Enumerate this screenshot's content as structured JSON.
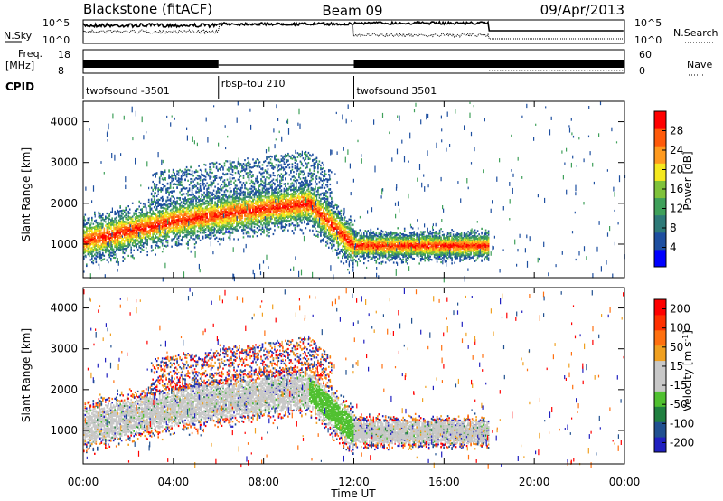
{
  "header": {
    "station": "Blackstone (fitACF)",
    "beam": "Beam 09",
    "date": "09/Apr/2013"
  },
  "panels": {
    "nsky_label": "N.Sky",
    "nsearch_label": "N.Search",
    "freq_label_1": "Freq.",
    "freq_label_2": "[MHz]",
    "nave_label": "Nave",
    "cpid_label": "CPID",
    "nsky_ticks": [
      "10^5",
      "10^0"
    ],
    "nsearch_ticks": [
      "10^5",
      "10^0"
    ],
    "freq_ticks": [
      "18",
      "8"
    ],
    "nave_ticks": [
      "60",
      "0"
    ]
  },
  "cpid_segments": [
    {
      "label": "twofsound -3501",
      "start_hour": 0,
      "end_hour": 6
    },
    {
      "label": "rbsp-tou 210",
      "start_hour": 6,
      "end_hour": 12
    },
    {
      "label": "twofsound 3501",
      "start_hour": 12,
      "end_hour": 24
    }
  ],
  "colors": {
    "power_scale": [
      "#0000ff",
      "#1e4fa0",
      "#2e7a78",
      "#3fa05a",
      "#7fc23a",
      "#f5e81e",
      "#ff9a1e",
      "#ff5a0a",
      "#ff0000"
    ],
    "velocity_scale": [
      "#2020c0",
      "#205090",
      "#208040",
      "#50c030",
      "#c8c8c8",
      "#c8c8c8",
      "#f0a020",
      "#ff7010",
      "#ff3000",
      "#ff0000"
    ]
  },
  "chart_data": [
    {
      "type": "heatmap",
      "title": "Power",
      "xlabel": "Time UT",
      "ylabel": "Slant Range [km]",
      "xlim": [
        0,
        24
      ],
      "ylim": [
        180,
        4500
      ],
      "x_ticks": [
        "00:00",
        "04:00",
        "08:00",
        "12:00",
        "16:00",
        "20:00",
        "00:00"
      ],
      "y_ticks": [
        1000,
        2000,
        3000,
        4000
      ],
      "colorbar_label": "Power [dB]",
      "colorbar_ticks": [
        "4",
        "8",
        "12",
        "16",
        "20",
        "24",
        "28"
      ],
      "echo_bands": [
        {
          "start_hour": 0,
          "end_hour": 6,
          "range_start_km": 1000,
          "range_end_km": 1800
        },
        {
          "start_hour": 4,
          "end_hour": 10,
          "range_start_km": 1700,
          "range_end_km": 2100
        },
        {
          "start_hour": 10,
          "end_hour": 12,
          "range_start_km": 2100,
          "range_end_km": 900
        },
        {
          "start_hour": 12,
          "end_hour": 18,
          "range_start_km": 1000,
          "range_end_km": 1000
        }
      ]
    },
    {
      "type": "heatmap",
      "title": "Velocity",
      "xlabel": "Time UT",
      "ylabel": "Slant Range [km]",
      "xlim": [
        0,
        24
      ],
      "ylim": [
        180,
        4500
      ],
      "x_ticks": [
        "00:00",
        "04:00",
        "08:00",
        "12:00",
        "16:00",
        "20:00",
        "00:00"
      ],
      "y_ticks": [
        1000,
        2000,
        3000,
        4000
      ],
      "colorbar_label": "Velocity [m s",
      "colorbar_label_sup": "-1",
      "colorbar_label_end": "]",
      "colorbar_ticks": [
        "200",
        "100",
        "50",
        "15",
        "-15",
        "-50",
        "-100",
        "-200"
      ]
    }
  ]
}
